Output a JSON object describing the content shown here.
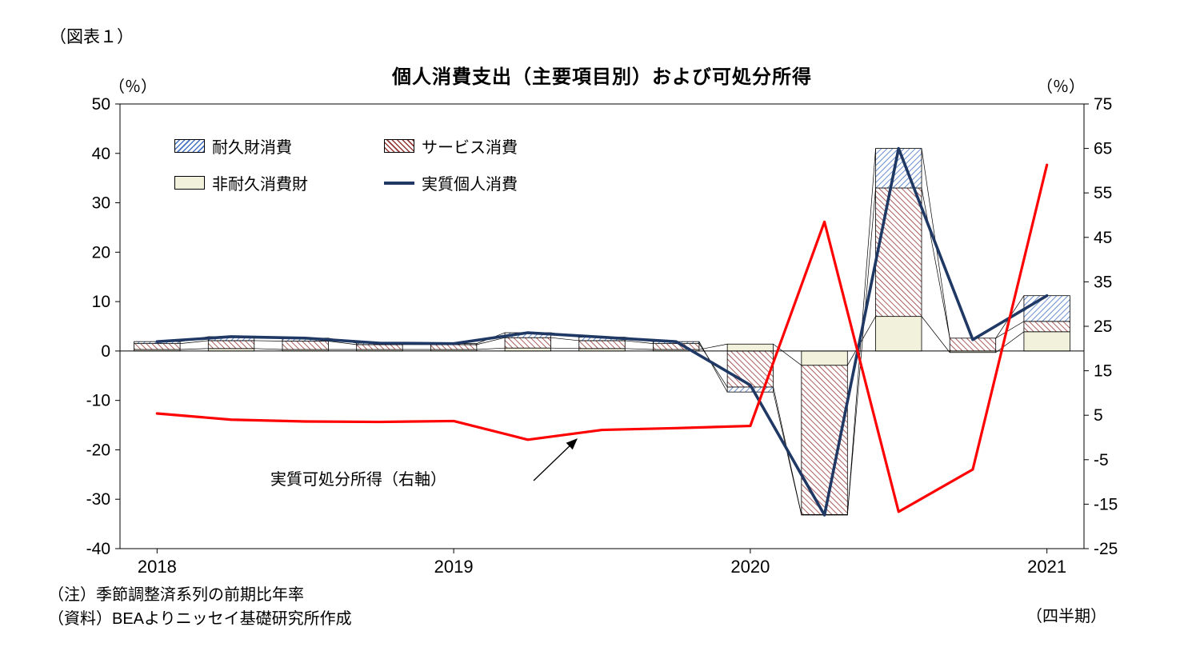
{
  "figure_label": "（図表１）",
  "title": "個人消費支出（主要項目別）および可処分所得",
  "left_axis_unit": "（％）",
  "right_axis_unit": "（％）",
  "x_axis_footer": "（四半期）",
  "annotation": "実質可処分所得（右軸）",
  "notes": [
    "（注）季節調整済系列の前期比年率",
    "（資料）BEAよりニッセイ基礎研究所作成"
  ],
  "legend": [
    {
      "label": "耐久財消費",
      "style": "hatch-blue"
    },
    {
      "label": "サービス消費",
      "style": "hatch-red"
    },
    {
      "label": "非耐久消費財",
      "style": "solid-cream"
    },
    {
      "label": "実質個人消費",
      "style": "line-navy"
    }
  ],
  "colors": {
    "durables_hatch": "#4472C4",
    "services_hatch": "#953735",
    "nondurables_fill": "#F2F2DC",
    "bar_outline": "#000000",
    "pce_line": "#1F3864",
    "income_line": "#FF0000"
  },
  "chart_data": {
    "type": "bar",
    "subtype": "stacked-bars-with-two-lines",
    "title": "個人消費支出（主要項目別）および可処分所得",
    "x": [
      "2018Q1",
      "2018Q2",
      "2018Q3",
      "2018Q4",
      "2019Q1",
      "2019Q2",
      "2019Q3",
      "2019Q4",
      "2020Q1",
      "2020Q2",
      "2020Q3",
      "2020Q4",
      "2021Q1"
    ],
    "x_tick_labels": [
      "2018",
      "2019",
      "2020",
      "2021"
    ],
    "left_ylim": [
      -40,
      50
    ],
    "right_ylim": [
      -25,
      75
    ],
    "left_ticks": [
      50,
      40,
      30,
      20,
      10,
      0,
      -10,
      -20,
      -30,
      -40
    ],
    "right_ticks": [
      75,
      65,
      55,
      45,
      35,
      25,
      15,
      5,
      -5,
      -15,
      -25
    ],
    "legend_position": "top-left-inside",
    "grid": false,
    "series": [
      {
        "name": "非耐久消費財",
        "type": "bar",
        "axis": "left",
        "style": "solid-cream",
        "values": [
          0.3,
          0.5,
          0.3,
          0.3,
          0.3,
          0.6,
          0.5,
          0.3,
          1.4,
          -2.9,
          7.0,
          -0.3,
          3.9
        ]
      },
      {
        "name": "サービス消費",
        "type": "bar",
        "axis": "left",
        "style": "hatch-red",
        "values": [
          1.2,
          1.6,
          1.7,
          1.0,
          1.0,
          2.1,
          1.6,
          1.2,
          -7.3,
          -30.2,
          26.0,
          2.6,
          2.1
        ]
      },
      {
        "name": "耐久財消費",
        "type": "bar",
        "axis": "left",
        "style": "hatch-blue",
        "values": [
          0.4,
          0.8,
          0.6,
          0.3,
          0.2,
          1.0,
          0.7,
          0.4,
          -1.0,
          -0.1,
          8.0,
          0.0,
          5.2
        ]
      },
      {
        "name": "実質個人消費",
        "type": "line",
        "axis": "left",
        "color": "#1F3864",
        "values": [
          1.9,
          2.9,
          2.6,
          1.6,
          1.5,
          3.7,
          2.8,
          1.9,
          -6.9,
          -33.2,
          41.0,
          2.3,
          11.2
        ]
      },
      {
        "name": "実質可処分所得",
        "type": "line",
        "axis": "right",
        "color": "#FF0000",
        "values": [
          5.4,
          4.0,
          3.6,
          3.5,
          3.7,
          -0.5,
          1.7,
          2.1,
          2.6,
          48.5,
          -16.7,
          -7.2,
          61.3
        ]
      }
    ]
  }
}
